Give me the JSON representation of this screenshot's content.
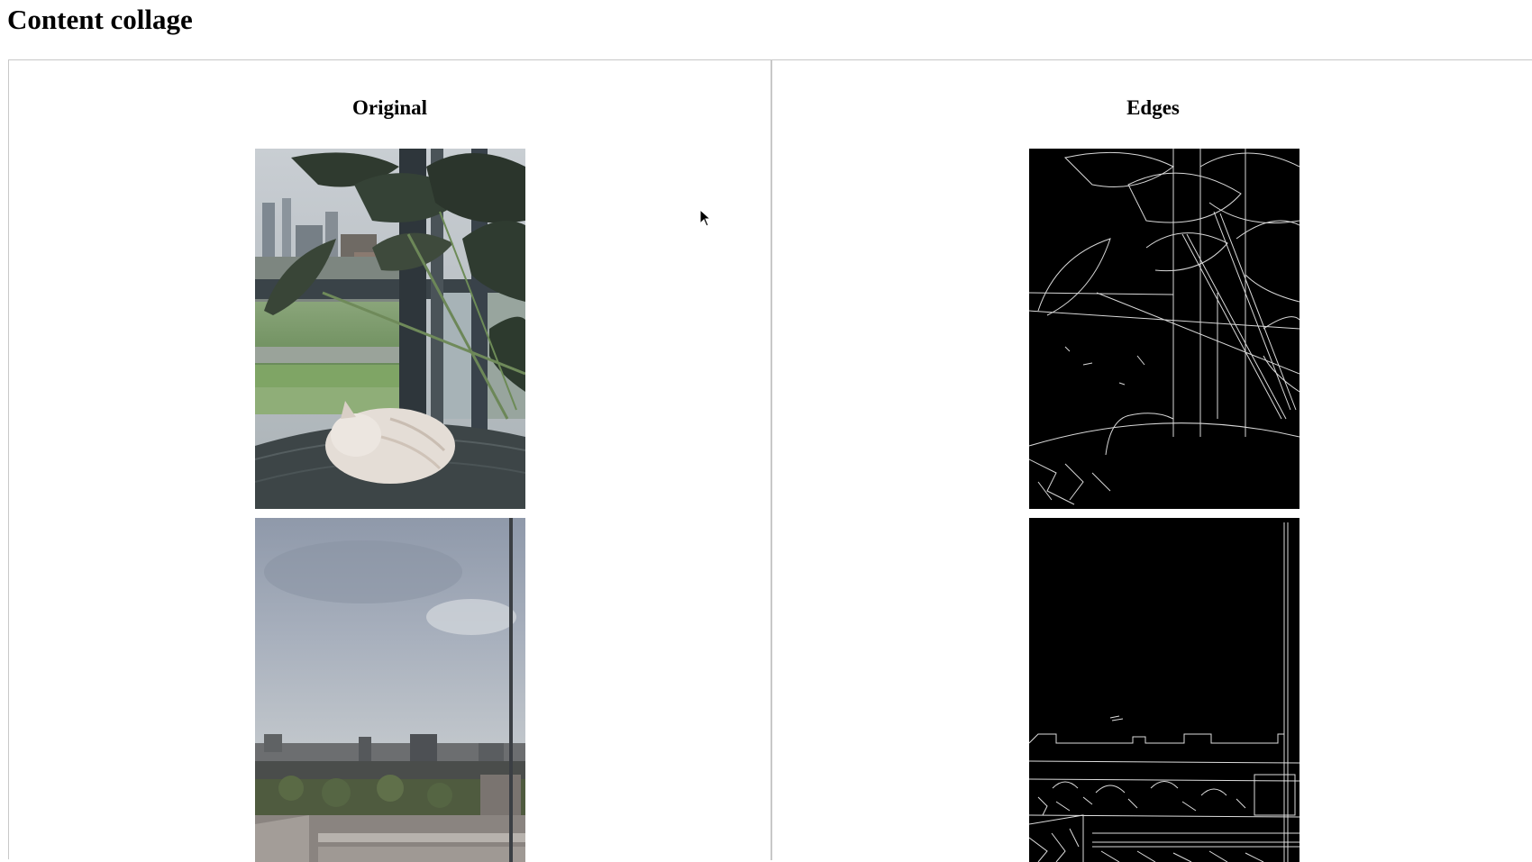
{
  "page": {
    "title": "Content collage"
  },
  "columns": [
    {
      "title": "Original"
    },
    {
      "title": "Edges"
    }
  ],
  "icons": {
    "cursor": "mouse-pointer-icon"
  }
}
